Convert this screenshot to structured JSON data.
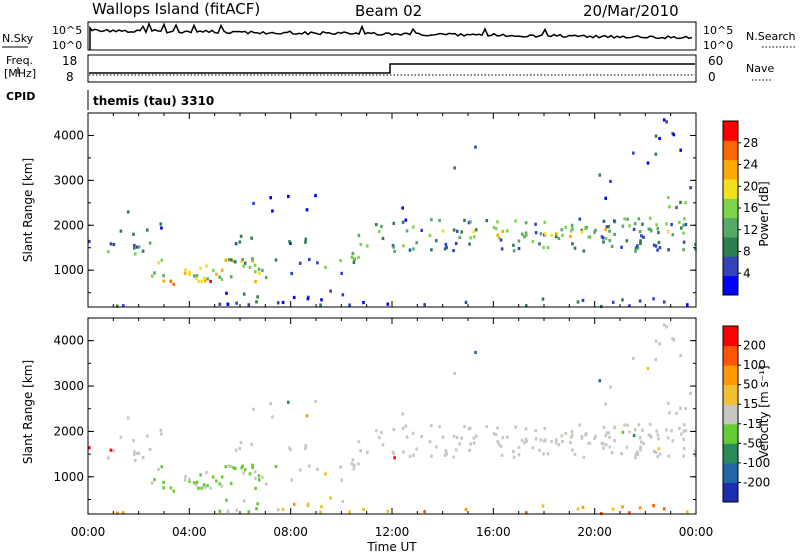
{
  "header": {
    "station": "Wallops Island (fitACF)",
    "beam": "Beam 02",
    "date": "20/Mar/2010"
  },
  "panels": {
    "nsky_label": "N.Sky",
    "nsky_ticks": [
      "10^5",
      "10^0"
    ],
    "nsearch_label": "N.Search",
    "nsearch_ticks": [
      "10^5",
      "10^0"
    ],
    "freq_label": "Freq.",
    "freq_unit": "[MHz]",
    "freq_ticks": [
      "18",
      "8"
    ],
    "nave_label": "Nave",
    "nave_ticks": [
      "60",
      "0"
    ],
    "cpid_label": "CPID",
    "cpid_text": "themis (tau) 3310"
  },
  "chart_data": [
    {
      "type": "heatmap",
      "name": "power",
      "ylabel": "Slant Range [km]",
      "yticks": [
        1000,
        2000,
        3000,
        4000
      ],
      "ylim": [
        180,
        4500
      ],
      "xlim": [
        0,
        24
      ],
      "colorbar": {
        "label": "Power [dB]",
        "ticks": [
          "28",
          "24",
          "20",
          "16",
          "12",
          "8",
          "4"
        ],
        "colors": [
          "#0000ff",
          "#3344bb",
          "#2e7d4e",
          "#55aa66",
          "#7dd44a",
          "#f0e020",
          "#ffaa00",
          "#ff6600",
          "#ff0000"
        ]
      }
    },
    {
      "type": "heatmap",
      "name": "velocity",
      "ylabel": "Slant Range [km]",
      "yticks": [
        1000,
        2000,
        3000,
        4000
      ],
      "ylim": [
        180,
        4500
      ],
      "xlim": [
        0,
        24
      ],
      "colorbar": {
        "label": "Velocity [m s⁻¹]",
        "ticks": [
          "200",
          "100",
          "50",
          "15",
          "-15",
          "-50",
          "-100",
          "-200"
        ],
        "colors": [
          "#1c2fb0",
          "#2266aa",
          "#2a8a5a",
          "#66cc33",
          "#c8c8c0",
          "#f0c030",
          "#ff9900",
          "#ff5500",
          "#ff0000"
        ]
      }
    }
  ],
  "xaxis": {
    "label": "Time UT",
    "ticks": [
      "00:00",
      "04:00",
      "08:00",
      "12:00",
      "16:00",
      "20:00",
      "00:00"
    ]
  }
}
